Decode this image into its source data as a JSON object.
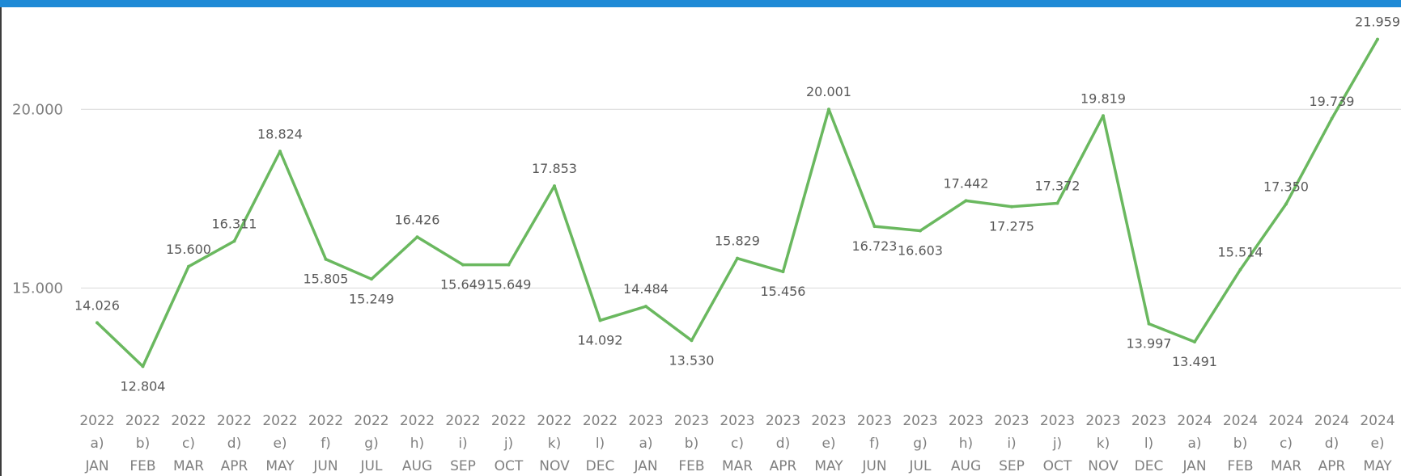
{
  "accent": "#1f8ad6",
  "chart_data": {
    "type": "line",
    "title": "",
    "xlabel": "",
    "ylabel": "",
    "ylim": [
      10800,
      22200
    ],
    "y_ticks": [
      15000,
      20000
    ],
    "y_tick_labels": [
      "15.000",
      "20.000"
    ],
    "grid": true,
    "categories": [
      {
        "year": "2022",
        "code": "a)",
        "month": "JAN"
      },
      {
        "year": "2022",
        "code": "b)",
        "month": "FEB"
      },
      {
        "year": "2022",
        "code": "c)",
        "month": "MAR"
      },
      {
        "year": "2022",
        "code": "d)",
        "month": "APR"
      },
      {
        "year": "2022",
        "code": "e)",
        "month": "MAY"
      },
      {
        "year": "2022",
        "code": "f)",
        "month": "JUN"
      },
      {
        "year": "2022",
        "code": "g)",
        "month": "JUL"
      },
      {
        "year": "2022",
        "code": "h)",
        "month": "AUG"
      },
      {
        "year": "2022",
        "code": "i)",
        "month": "SEP"
      },
      {
        "year": "2022",
        "code": "j)",
        "month": "OCT"
      },
      {
        "year": "2022",
        "code": "k)",
        "month": "NOV"
      },
      {
        "year": "2022",
        "code": "l)",
        "month": "DEC"
      },
      {
        "year": "2023",
        "code": "a)",
        "month": "JAN"
      },
      {
        "year": "2023",
        "code": "b)",
        "month": "FEB"
      },
      {
        "year": "2023",
        "code": "c)",
        "month": "MAR"
      },
      {
        "year": "2023",
        "code": "d)",
        "month": "APR"
      },
      {
        "year": "2023",
        "code": "e)",
        "month": "MAY"
      },
      {
        "year": "2023",
        "code": "f)",
        "month": "JUN"
      },
      {
        "year": "2023",
        "code": "g)",
        "month": "JUL"
      },
      {
        "year": "2023",
        "code": "h)",
        "month": "AUG"
      },
      {
        "year": "2023",
        "code": "i)",
        "month": "SEP"
      },
      {
        "year": "2023",
        "code": "j)",
        "month": "OCT"
      },
      {
        "year": "2023",
        "code": "k)",
        "month": "NOV"
      },
      {
        "year": "2023",
        "code": "l)",
        "month": "DEC"
      },
      {
        "year": "2024",
        "code": "a)",
        "month": "JAN"
      },
      {
        "year": "2024",
        "code": "b)",
        "month": "FEB"
      },
      {
        "year": "2024",
        "code": "c)",
        "month": "MAR"
      },
      {
        "year": "2024",
        "code": "d)",
        "month": "APR"
      },
      {
        "year": "2024",
        "code": "e)",
        "month": "MAY"
      }
    ],
    "series": [
      {
        "color": "#6ab85f",
        "values": [
          14026,
          12804,
          15600,
          16311,
          18824,
          15805,
          15249,
          16426,
          15649,
          15649,
          17853,
          14092,
          14484,
          13530,
          15829,
          15456,
          20001,
          16723,
          16603,
          17442,
          17275,
          17372,
          19819,
          13997,
          13491,
          15514,
          17350,
          19739,
          21959
        ],
        "labels": [
          "14.026",
          "12.804",
          "15.600",
          "16.311",
          "18.824",
          "15.805",
          "15.249",
          "16.426",
          "15.649",
          "15.649",
          "17.853",
          "14.092",
          "14.484",
          "13.530",
          "15.829",
          "15.456",
          "20.001",
          "16.723",
          "16.603",
          "17.442",
          "17.275",
          "17.372",
          "19.819",
          "13.997",
          "13.491",
          "15.514",
          "17.350",
          "19.739",
          "21.959"
        ]
      }
    ]
  }
}
